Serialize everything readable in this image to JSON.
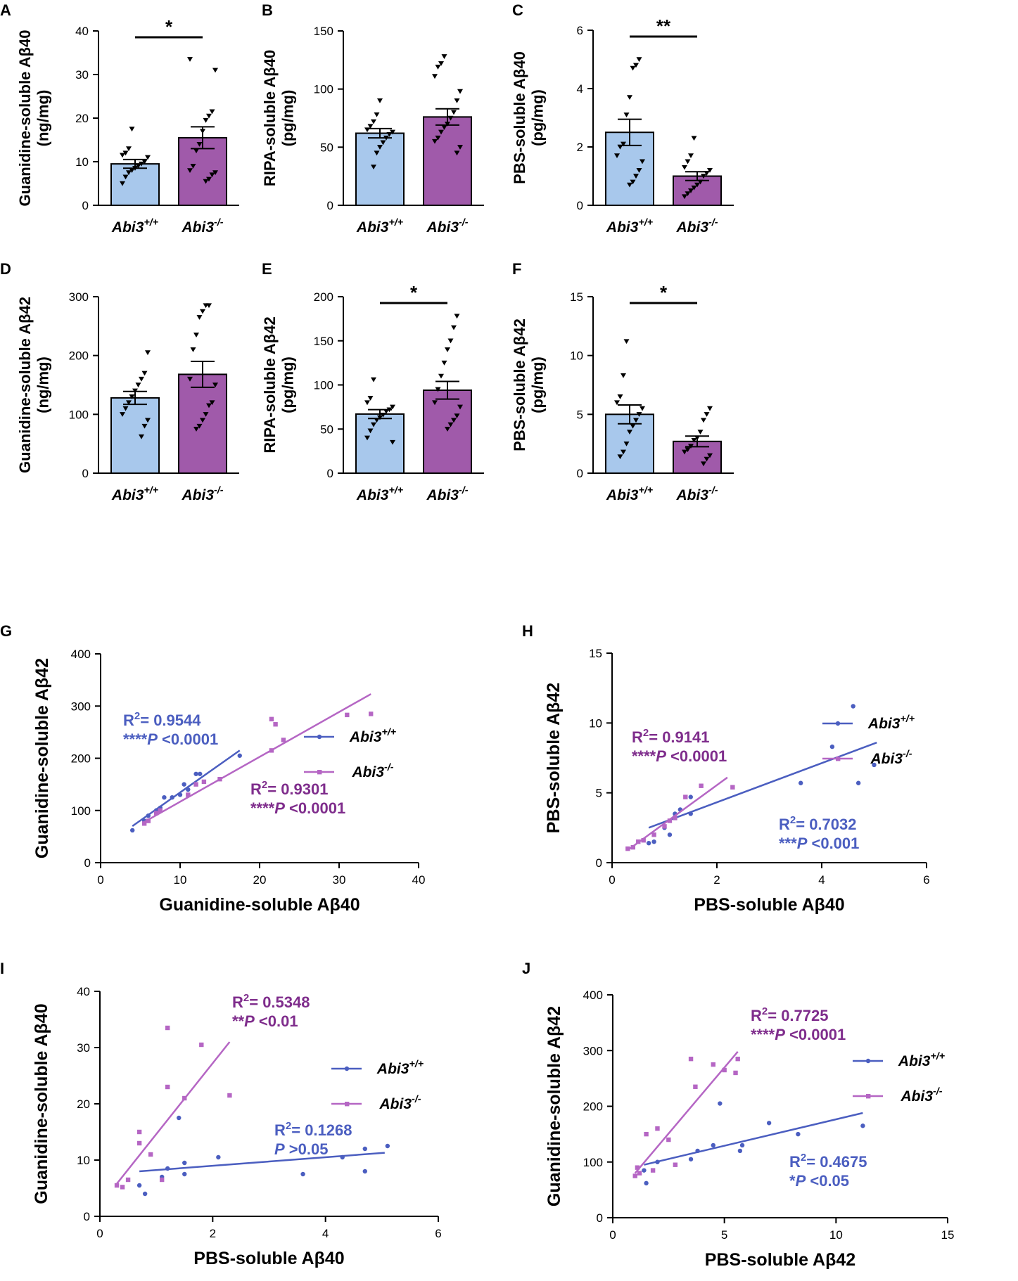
{
  "colors": {
    "wt": "#a8c8ec",
    "ko": "#a05aaa",
    "wt_line": "#4b5ec0",
    "ko_line": "#b566c4",
    "wt_text": "#4b5ec0",
    "ko_text": "#7f2d8c",
    "axis": "#000000"
  },
  "groups": {
    "wt_label": "Abi3",
    "wt_sup": "+/+",
    "ko_label": "Abi3",
    "ko_sup": "-/-"
  },
  "chart_data": [
    {
      "panel": "A",
      "type": "bar",
      "ylabel": "Guanidine-soluble Aβ40",
      "yunit": "(ng/mg)",
      "ylim": [
        0,
        40
      ],
      "yticks": [
        0,
        10,
        20,
        30,
        40
      ],
      "bars": [
        {
          "group": "wt",
          "mean": 9.5,
          "sem": 1.0,
          "points": [
            5,
            6.5,
            7.5,
            8,
            8.5,
            9,
            9.5,
            10,
            11,
            11.5,
            12,
            13,
            17.5
          ]
        },
        {
          "group": "ko",
          "mean": 15.5,
          "sem": 2.5,
          "points": [
            5.5,
            6,
            7,
            7.5,
            8,
            9,
            12.5,
            14,
            17,
            19.5,
            20.5,
            21.5,
            31,
            33.5
          ]
        }
      ],
      "significance": "*"
    },
    {
      "panel": "B",
      "type": "bar",
      "ylabel": "RIPA-soluble Aβ40",
      "yunit": "(pg/mg)",
      "ylim": [
        0,
        150
      ],
      "yticks": [
        0,
        50,
        100,
        150
      ],
      "bars": [
        {
          "group": "wt",
          "mean": 62,
          "sem": 4,
          "points": [
            33,
            45,
            50,
            54,
            58,
            61,
            63,
            65,
            68,
            72,
            78,
            90
          ]
        },
        {
          "group": "ko",
          "mean": 76,
          "sem": 7,
          "points": [
            45,
            50,
            55,
            58,
            63,
            67,
            70,
            75,
            80,
            90,
            98,
            111,
            119,
            122,
            128
          ]
        }
      ],
      "significance": ""
    },
    {
      "panel": "C",
      "type": "bar",
      "ylabel": "PBS-soluble Aβ40",
      "yunit": "(pg/mg)",
      "ylim": [
        0,
        6
      ],
      "yticks": [
        0,
        2,
        4,
        6
      ],
      "bars": [
        {
          "group": "wt",
          "mean": 2.5,
          "sem": 0.45,
          "points": [
            0.7,
            0.8,
            1.0,
            1.2,
            1.5,
            1.7,
            2.0,
            2.1,
            3.1,
            3.7,
            4.7,
            4.8,
            5.0
          ]
        },
        {
          "group": "ko",
          "mean": 1.0,
          "sem": 0.15,
          "points": [
            0.3,
            0.4,
            0.5,
            0.6,
            0.7,
            0.8,
            1.0,
            1.1,
            1.2,
            1.3,
            1.5,
            1.7,
            2.3
          ]
        }
      ],
      "significance": "**"
    },
    {
      "panel": "D",
      "type": "bar",
      "ylabel": "Guanidine-soluble Aβ42",
      "yunit": "(ng/mg)",
      "ylim": [
        0,
        300
      ],
      "yticks": [
        0,
        100,
        200,
        300
      ],
      "bars": [
        {
          "group": "wt",
          "mean": 128,
          "sem": 11,
          "points": [
            62,
            80,
            90,
            100,
            110,
            120,
            130,
            140,
            150,
            160,
            170,
            205
          ]
        },
        {
          "group": "ko",
          "mean": 168,
          "sem": 22,
          "points": [
            75,
            80,
            90,
            100,
            115,
            120,
            150,
            160,
            210,
            235,
            265,
            275,
            285,
            285
          ]
        }
      ],
      "significance": ""
    },
    {
      "panel": "E",
      "type": "bar",
      "ylabel": "RIPA-soluble Aβ42",
      "yunit": "(pg/mg)",
      "ylim": [
        0,
        200
      ],
      "yticks": [
        0,
        50,
        100,
        150,
        200
      ],
      "bars": [
        {
          "group": "wt",
          "mean": 67,
          "sem": 5,
          "points": [
            35,
            40,
            48,
            55,
            60,
            63,
            66,
            70,
            72,
            75,
            80,
            85,
            106
          ]
        },
        {
          "group": "ko",
          "mean": 94,
          "sem": 10,
          "points": [
            50,
            55,
            60,
            65,
            75,
            80,
            95,
            110,
            125,
            140,
            150,
            165,
            178
          ]
        }
      ],
      "significance": "*"
    },
    {
      "panel": "F",
      "type": "bar",
      "ylabel": "PBS-soluble Aβ42",
      "yunit": "(pg/mg)",
      "ylim": [
        0,
        15
      ],
      "yticks": [
        0,
        5,
        10,
        15
      ],
      "bars": [
        {
          "group": "wt",
          "mean": 5.0,
          "sem": 0.8,
          "points": [
            1.4,
            1.8,
            2.5,
            3.5,
            4.0,
            4.5,
            5.0,
            5.5,
            6.0,
            6.5,
            8.3,
            11.2
          ]
        },
        {
          "group": "ko",
          "mean": 2.7,
          "sem": 0.45,
          "points": [
            0.8,
            1.2,
            1.5,
            1.8,
            2.0,
            2.3,
            2.8,
            3.0,
            3.5,
            4.5,
            5.0,
            5.5
          ]
        }
      ],
      "significance": "*"
    },
    {
      "panel": "G",
      "type": "scatter",
      "xlabel": "Guanidine-soluble Aβ40",
      "ylabel": "Guanidine-soluble Aβ42",
      "xlim": [
        0,
        40
      ],
      "xticks": [
        0,
        10,
        20,
        30,
        40
      ],
      "ylim": [
        0,
        400
      ],
      "yticks": [
        0,
        100,
        200,
        300,
        400
      ],
      "series": [
        {
          "group": "wt",
          "points": [
            [
              4,
              62
            ],
            [
              5.5,
              80
            ],
            [
              6,
              90
            ],
            [
              7,
              100
            ],
            [
              7.5,
              105
            ],
            [
              8,
              125
            ],
            [
              9,
              125
            ],
            [
              10,
              130
            ],
            [
              10.5,
              150
            ],
            [
              11,
              140
            ],
            [
              12,
              170
            ],
            [
              12.5,
              170
            ],
            [
              17.5,
              205
            ]
          ],
          "fit": [
            [
              4,
              70
            ],
            [
              17.5,
              215
            ]
          ],
          "r2": "R²= 0.9544",
          "p": "****P <0.0001"
        },
        {
          "group": "ko",
          "points": [
            [
              5.5,
              75
            ],
            [
              6,
              80
            ],
            [
              7,
              95
            ],
            [
              7.5,
              100
            ],
            [
              11,
              130
            ],
            [
              12,
              150
            ],
            [
              13,
              155
            ],
            [
              15,
              160
            ],
            [
              21.5,
              275
            ],
            [
              22,
              265
            ],
            [
              21.5,
              215
            ],
            [
              23,
              235
            ],
            [
              31,
              283
            ],
            [
              34,
              285
            ]
          ],
          "fit": [
            [
              5.5,
              78
            ],
            [
              34,
              323
            ]
          ],
          "r2": "R²= 0.9301",
          "p": "****P <0.0001"
        }
      ]
    },
    {
      "panel": "H",
      "type": "scatter",
      "xlabel": "PBS-soluble Aβ40",
      "ylabel": "PBS-soluble Aβ42",
      "xlim": [
        0,
        6
      ],
      "xticks": [
        0,
        2,
        4,
        6
      ],
      "ylim": [
        0,
        15
      ],
      "yticks": [
        0,
        5,
        10,
        15
      ],
      "series": [
        {
          "group": "wt",
          "points": [
            [
              0.7,
              1.4
            ],
            [
              0.8,
              1.5
            ],
            [
              1.0,
              2.5
            ],
            [
              1.1,
              2.0
            ],
            [
              1.2,
              3.5
            ],
            [
              1.3,
              3.8
            ],
            [
              1.5,
              3.5
            ],
            [
              1.5,
              4.7
            ],
            [
              3.6,
              5.7
            ],
            [
              4.2,
              8.3
            ],
            [
              4.6,
              11.2
            ],
            [
              4.7,
              5.7
            ],
            [
              5.0,
              7.0
            ]
          ],
          "fit": [
            [
              0.7,
              2.5
            ],
            [
              5.05,
              8.6
            ]
          ],
          "r2": "R²= 0.7032",
          "p": "***P <0.001"
        },
        {
          "group": "ko",
          "points": [
            [
              0.3,
              1.0
            ],
            [
              0.4,
              1.1
            ],
            [
              0.5,
              1.5
            ],
            [
              0.6,
              1.6
            ],
            [
              0.8,
              2.0
            ],
            [
              1.0,
              2.6
            ],
            [
              1.1,
              3.0
            ],
            [
              1.2,
              3.2
            ],
            [
              1.4,
              4.7
            ],
            [
              1.7,
              5.5
            ],
            [
              2.3,
              5.4
            ]
          ],
          "fit": [
            [
              0.3,
              0.9
            ],
            [
              2.2,
              6.1
            ]
          ],
          "r2": "R²= 0.9141",
          "p": "****P <0.0001"
        }
      ]
    },
    {
      "panel": "I",
      "type": "scatter",
      "xlabel": "PBS-soluble Aβ40",
      "ylabel": "Guanidine-soluble Aβ40",
      "xlim": [
        0,
        6
      ],
      "xticks": [
        0,
        2,
        4,
        6
      ],
      "ylim": [
        0,
        40
      ],
      "yticks": [
        0,
        10,
        20,
        30,
        40
      ],
      "series": [
        {
          "group": "wt",
          "points": [
            [
              0.7,
              5.5
            ],
            [
              0.8,
              4
            ],
            [
              1.1,
              7
            ],
            [
              1.2,
              8.5
            ],
            [
              1.4,
              17.5
            ],
            [
              1.5,
              9.5
            ],
            [
              1.5,
              7.5
            ],
            [
              2.1,
              10.5
            ],
            [
              3.6,
              7.5
            ],
            [
              4.3,
              10.5
            ],
            [
              4.7,
              12
            ],
            [
              4.7,
              8
            ],
            [
              5.1,
              12.5
            ]
          ],
          "fit": [
            [
              0.7,
              8
            ],
            [
              5.05,
              11.3
            ]
          ],
          "r2": "R²= 0.1268",
          "p": "P >0.05"
        },
        {
          "group": "ko",
          "points": [
            [
              0.3,
              5.5
            ],
            [
              0.4,
              5.2
            ],
            [
              0.5,
              6.5
            ],
            [
              0.7,
              13
            ],
            [
              0.7,
              15
            ],
            [
              0.9,
              11
            ],
            [
              1.1,
              6.5
            ],
            [
              1.2,
              23
            ],
            [
              1.2,
              33.5
            ],
            [
              1.5,
              21
            ],
            [
              1.8,
              30.5
            ],
            [
              2.3,
              21.5
            ]
          ],
          "fit": [
            [
              0.3,
              5.8
            ],
            [
              2.3,
              31
            ]
          ],
          "r2": "R²= 0.5348",
          "p": "**P <0.01"
        }
      ]
    },
    {
      "panel": "J",
      "type": "scatter",
      "xlabel": "PBS-soluble Aβ42",
      "ylabel": "Guanidine-soluble Aβ42",
      "xlim": [
        0,
        15
      ],
      "xticks": [
        0,
        5,
        10,
        15
      ],
      "ylim": [
        0,
        400
      ],
      "yticks": [
        0,
        100,
        200,
        300,
        400
      ],
      "series": [
        {
          "group": "wt",
          "points": [
            [
              1.4,
              85
            ],
            [
              1.5,
              62
            ],
            [
              2.0,
              100
            ],
            [
              3.5,
              105
            ],
            [
              3.8,
              120
            ],
            [
              4.5,
              130
            ],
            [
              4.8,
              205
            ],
            [
              5.7,
              120
            ],
            [
              5.8,
              130
            ],
            [
              7.0,
              170
            ],
            [
              8.3,
              150
            ],
            [
              11.2,
              165
            ]
          ],
          "fit": [
            [
              1.4,
              95
            ],
            [
              11.2,
              188
            ]
          ],
          "r2": "R²= 0.4675",
          "p": "*P <0.05"
        },
        {
          "group": "ko",
          "points": [
            [
              1.0,
              75
            ],
            [
              1.1,
              90
            ],
            [
              1.2,
              80
            ],
            [
              1.5,
              150
            ],
            [
              1.8,
              85
            ],
            [
              2.0,
              160
            ],
            [
              2.5,
              140
            ],
            [
              2.8,
              95
            ],
            [
              3.5,
              285
            ],
            [
              3.7,
              235
            ],
            [
              4.5,
              275
            ],
            [
              5.0,
              265
            ],
            [
              5.5,
              260
            ],
            [
              5.6,
              285
            ]
          ],
          "fit": [
            [
              1.0,
              80
            ],
            [
              5.6,
              298
            ]
          ],
          "r2": "R²= 0.7725",
          "p": "****P <0.0001"
        }
      ]
    }
  ]
}
